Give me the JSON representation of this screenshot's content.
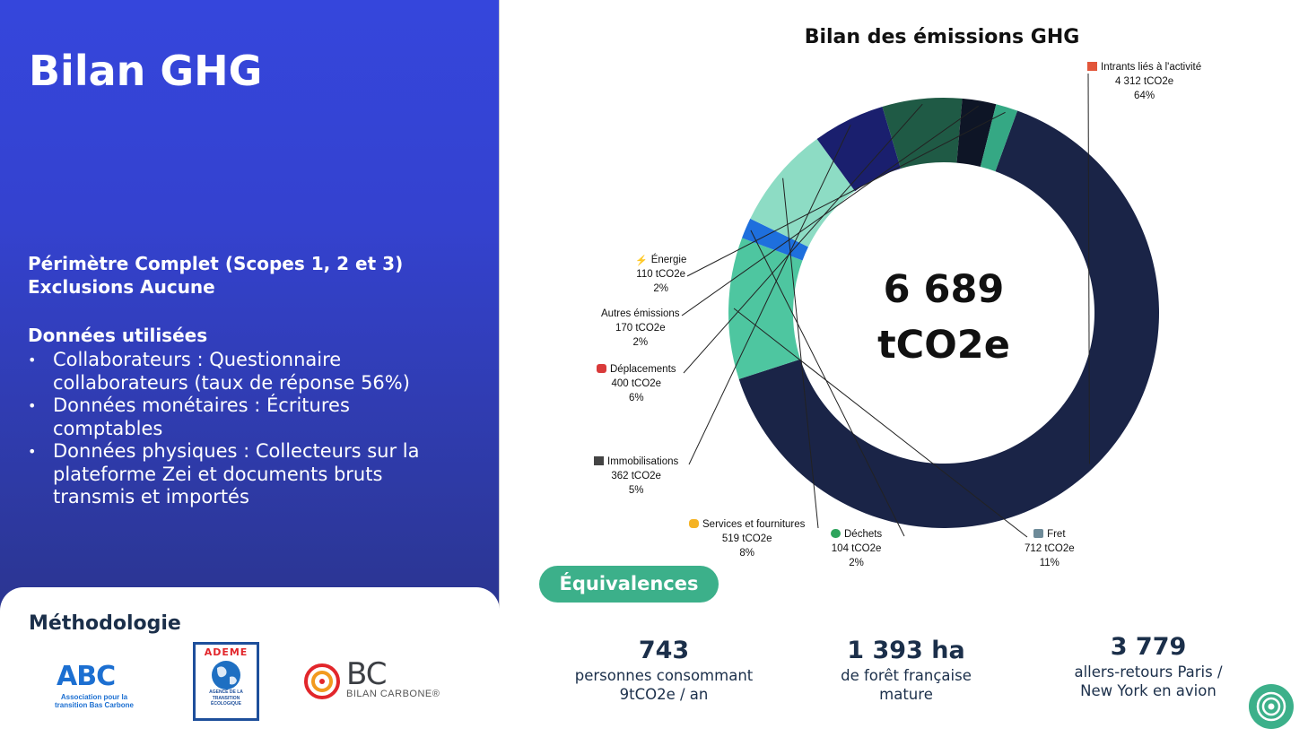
{
  "left": {
    "title": "Bilan GHG",
    "scope_line": "Périmètre Complet (Scopes 1, 2 et 3)",
    "exclusions_line": "Exclusions Aucune",
    "data_title": "Données utilisées",
    "data_items": [
      "Collaborateurs : Questionnaire collaborateurs (taux de réponse 56%)",
      "Données monétaires : Écritures comptables",
      "Données physiques : Collecteurs sur la plateforme Zei et documents bruts transmis et importés"
    ],
    "bullet": "•",
    "methodology_title": "Méthodologie",
    "logos": {
      "abc_mark": "ABC",
      "abc_text_1": "Association pour la",
      "abc_text_2": "transition Bas Carbone",
      "ademe_name": "ADEME",
      "ademe_sub_1": "AGENCE DE LA",
      "ademe_sub_2": "TRANSITION",
      "ademe_sub_3": "ÉCOLOGIQUE",
      "bc_mark": "BC",
      "bc_text": "BILAN CARBONE®"
    }
  },
  "chart_data": {
    "type": "pie",
    "title": "Bilan des émissions GHG",
    "center_label_value": "6 689",
    "center_label_unit": "tCO2e",
    "slices": [
      {
        "name": "Intrants liés à l'activité",
        "value": 4312,
        "value_label": "4 312 tCO2e",
        "percent": "64%",
        "color": "#1a2447",
        "icon": "brick-icon"
      },
      {
        "name": "Fret",
        "value": 712,
        "value_label": "712 tCO2e",
        "percent": "11%",
        "color": "#4ec6a0",
        "icon": "truck-icon"
      },
      {
        "name": "Déchets",
        "value": 104,
        "value_label": "104 tCO2e",
        "percent": "2%",
        "color": "#1e6fdd",
        "icon": "recycle-icon"
      },
      {
        "name": "Services et fournitures",
        "value": 519,
        "value_label": "519 tCO2e",
        "percent": "8%",
        "color": "#8ddcc4",
        "icon": "flexed-arm-icon"
      },
      {
        "name": "Immobilisations",
        "value": 362,
        "value_label": "362 tCO2e",
        "percent": "5%",
        "color": "#1a1f6e",
        "icon": "factory-icon"
      },
      {
        "name": "Déplacements",
        "value": 400,
        "value_label": "400 tCO2e",
        "percent": "6%",
        "color": "#1f5a45",
        "icon": "car-icon"
      },
      {
        "name": "Autres émissions",
        "value": 170,
        "value_label": "170 tCO2e",
        "percent": "2%",
        "color": "#0e1526",
        "icon": ""
      },
      {
        "name": "Énergie",
        "value": 110,
        "value_label": "110 tCO2e",
        "percent": "2%",
        "color": "#35a884",
        "icon": "lightning-icon"
      }
    ]
  },
  "equivalences": {
    "title": "Équivalences",
    "items": [
      {
        "value": "743",
        "line1": "personnes consommant",
        "line2": "9tCO2e / an"
      },
      {
        "value": "1 393 ha",
        "line1": "de forêt française",
        "line2": "mature"
      },
      {
        "value": "3 779",
        "line1": "allers-retours Paris /",
        "line2": "New York en avion"
      }
    ]
  }
}
